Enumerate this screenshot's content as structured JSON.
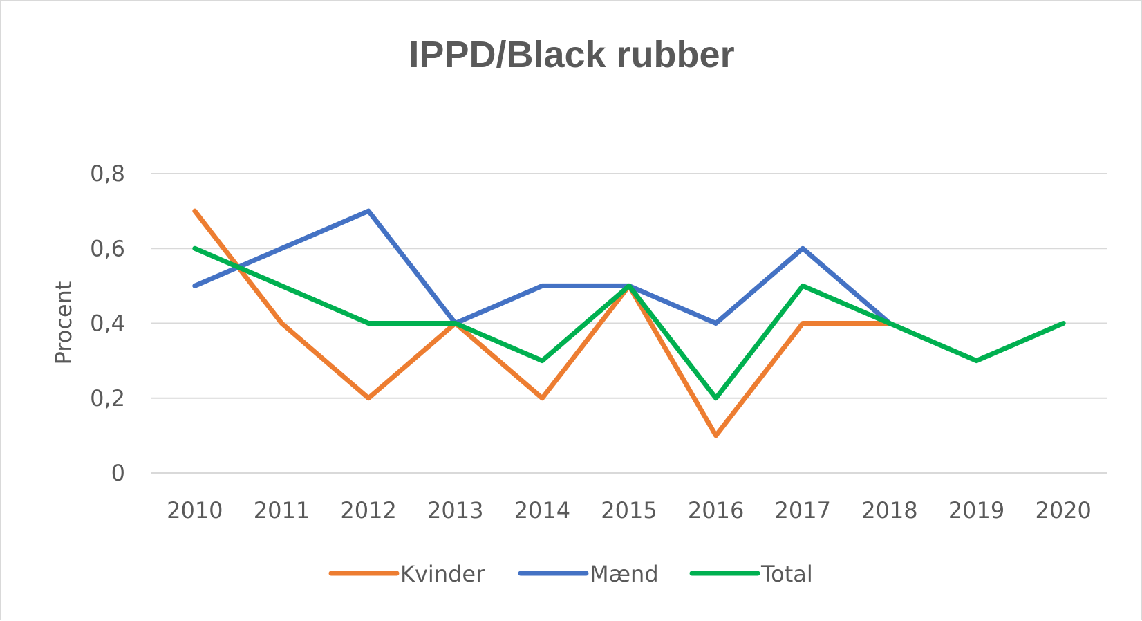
{
  "chart_data": {
    "type": "line",
    "title": "IPPD/Black rubber",
    "xlabel": "",
    "ylabel": "Procent",
    "categories": [
      "2010",
      "2011",
      "2012",
      "2013",
      "2014",
      "2015",
      "2016",
      "2017",
      "2018",
      "2019",
      "2020"
    ],
    "ylim": [
      0,
      0.8
    ],
    "yticks": [
      "0",
      "0,2",
      "0,4",
      "0,6",
      "0,8"
    ],
    "grid": true,
    "legend_position": "bottom",
    "series": [
      {
        "name": "Kvinder",
        "color": "#ed7d31",
        "values": [
          0.7,
          0.4,
          0.2,
          0.4,
          0.2,
          0.5,
          0.1,
          0.4,
          0.4,
          null,
          null
        ]
      },
      {
        "name": "Mænd",
        "color": "#4472c4",
        "values": [
          0.5,
          0.6,
          0.7,
          0.4,
          0.5,
          0.5,
          0.4,
          0.6,
          0.4,
          null,
          null
        ]
      },
      {
        "name": "Total",
        "color": "#00b050",
        "values": [
          0.6,
          0.5,
          0.4,
          0.4,
          0.3,
          0.5,
          0.2,
          0.5,
          0.4,
          0.3,
          0.4
        ]
      }
    ]
  }
}
